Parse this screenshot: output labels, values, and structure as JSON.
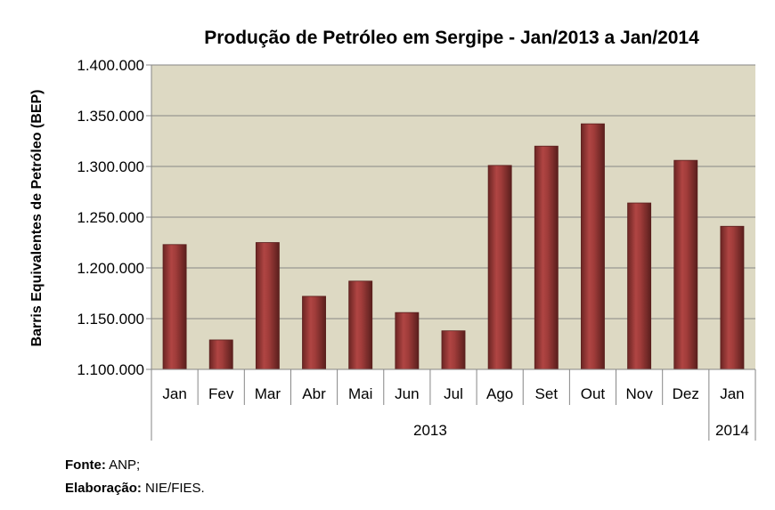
{
  "chart_data": {
    "type": "bar",
    "title": "Produção  de Petróleo em Sergipe - Jan/2013 a Jan/2014",
    "ylabel": "Barris Equivalentes de Petróleo (BEP)",
    "xlabel": "",
    "categories": [
      "Jan",
      "Fev",
      "Mar",
      "Abr",
      "Mai",
      "Jun",
      "Jul",
      "Ago",
      "Set",
      "Out",
      "Nov",
      "Dez",
      "Jan"
    ],
    "groups": [
      {
        "label": "2013",
        "count": 12
      },
      {
        "label": "2014",
        "count": 1
      }
    ],
    "values": [
      1223000,
      1129000,
      1225000,
      1172000,
      1187000,
      1156000,
      1138000,
      1301000,
      1320000,
      1342000,
      1264000,
      1306000,
      1241000
    ],
    "ylim": [
      1100000,
      1400000
    ],
    "yticks": [
      1100000,
      1150000,
      1200000,
      1250000,
      1300000,
      1350000,
      1400000
    ],
    "ytick_labels": [
      "1.100.000",
      "1.150.000",
      "1.200.000",
      "1.250.000",
      "1.300.000",
      "1.350.000",
      "1.400.000"
    ],
    "grid": true,
    "colors": {
      "plot_background": "#DDD9C3",
      "bar": "#953735",
      "bar_dark": "#632523",
      "bar_light": "#C0504D",
      "gridline": "#868686"
    }
  },
  "source": {
    "fonte_label": "Fonte:",
    "fonte_value": "ANP;",
    "elaboracao_label": "Elaboração:",
    "elaboracao_value": "NIE/FIES."
  }
}
